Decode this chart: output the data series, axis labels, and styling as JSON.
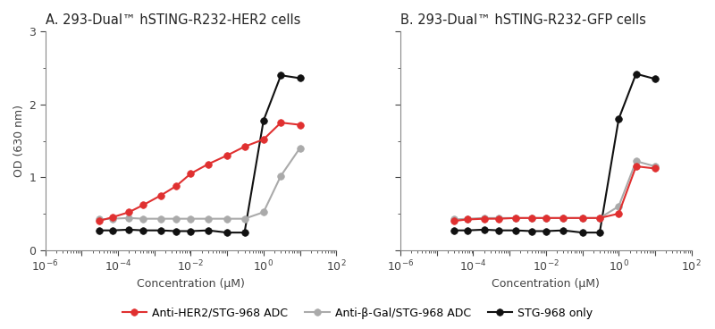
{
  "title_A": "A. 293-Dual™ hSTING-R232-HER2 cells",
  "title_B": "B. 293-Dual™ hSTING-R232-GFP cells",
  "xlabel": "Concentration (μM)",
  "ylabel": "OD (630 nm)",
  "xlim": [
    1e-06,
    100.0
  ],
  "ylim": [
    0,
    3
  ],
  "yticks": [
    0,
    1,
    2,
    3
  ],
  "panel_A": {
    "anti_her2": {
      "x": [
        3e-05,
        7e-05,
        0.0002,
        0.0005,
        0.0015,
        0.004,
        0.01,
        0.03,
        0.1,
        0.3,
        1.0,
        3.0,
        10.0
      ],
      "y": [
        0.4,
        0.45,
        0.52,
        0.62,
        0.75,
        0.88,
        1.05,
        1.18,
        1.3,
        1.42,
        1.52,
        1.75,
        1.72
      ],
      "color": "#e03030",
      "marker": "o"
    },
    "anti_bgal": {
      "x": [
        3e-05,
        7e-05,
        0.0002,
        0.0005,
        0.0015,
        0.004,
        0.01,
        0.03,
        0.1,
        0.3,
        1.0,
        3.0,
        10.0
      ],
      "y": [
        0.42,
        0.43,
        0.44,
        0.43,
        0.43,
        0.43,
        0.43,
        0.43,
        0.43,
        0.43,
        0.52,
        1.02,
        1.4
      ],
      "color": "#aaaaaa",
      "marker": "o"
    },
    "stg_only": {
      "x": [
        3e-05,
        7e-05,
        0.0002,
        0.0005,
        0.0015,
        0.004,
        0.01,
        0.03,
        0.1,
        0.3,
        1.0,
        3.0,
        10.0
      ],
      "y": [
        0.27,
        0.27,
        0.28,
        0.27,
        0.27,
        0.26,
        0.26,
        0.27,
        0.24,
        0.24,
        1.78,
        2.4,
        2.36
      ],
      "color": "#111111",
      "marker": "o"
    }
  },
  "panel_B": {
    "anti_her2": {
      "x": [
        3e-05,
        7e-05,
        0.0002,
        0.0005,
        0.0015,
        0.004,
        0.01,
        0.03,
        0.1,
        0.3,
        1.0,
        3.0,
        10.0
      ],
      "y": [
        0.4,
        0.42,
        0.43,
        0.43,
        0.44,
        0.44,
        0.44,
        0.44,
        0.44,
        0.44,
        0.5,
        1.15,
        1.12
      ],
      "color": "#e03030",
      "marker": "o"
    },
    "anti_bgal": {
      "x": [
        3e-05,
        7e-05,
        0.0002,
        0.0005,
        0.0015,
        0.004,
        0.01,
        0.03,
        0.1,
        0.3,
        1.0,
        3.0,
        10.0
      ],
      "y": [
        0.42,
        0.43,
        0.44,
        0.44,
        0.44,
        0.44,
        0.44,
        0.44,
        0.44,
        0.44,
        0.6,
        1.22,
        1.15
      ],
      "color": "#aaaaaa",
      "marker": "o"
    },
    "stg_only": {
      "x": [
        3e-05,
        7e-05,
        0.0002,
        0.0005,
        0.0015,
        0.004,
        0.01,
        0.03,
        0.1,
        0.3,
        1.0,
        3.0,
        10.0
      ],
      "y": [
        0.27,
        0.27,
        0.28,
        0.27,
        0.27,
        0.26,
        0.26,
        0.27,
        0.24,
        0.24,
        1.8,
        2.42,
        2.35
      ],
      "color": "#111111",
      "marker": "o"
    }
  },
  "legend": [
    {
      "label": "Anti-HER2/STG-968 ADC",
      "color": "#e03030",
      "marker": "o"
    },
    {
      "label": "Anti-β-Gal/STG-968 ADC",
      "color": "#aaaaaa",
      "marker": "o"
    },
    {
      "label": "STG-968 only",
      "color": "#111111",
      "marker": "o"
    }
  ],
  "bg_color": "#ffffff",
  "spine_color": "#888888",
  "tick_color": "#444444",
  "label_fontsize": 9,
  "title_fontsize": 10.5,
  "legend_fontsize": 9
}
